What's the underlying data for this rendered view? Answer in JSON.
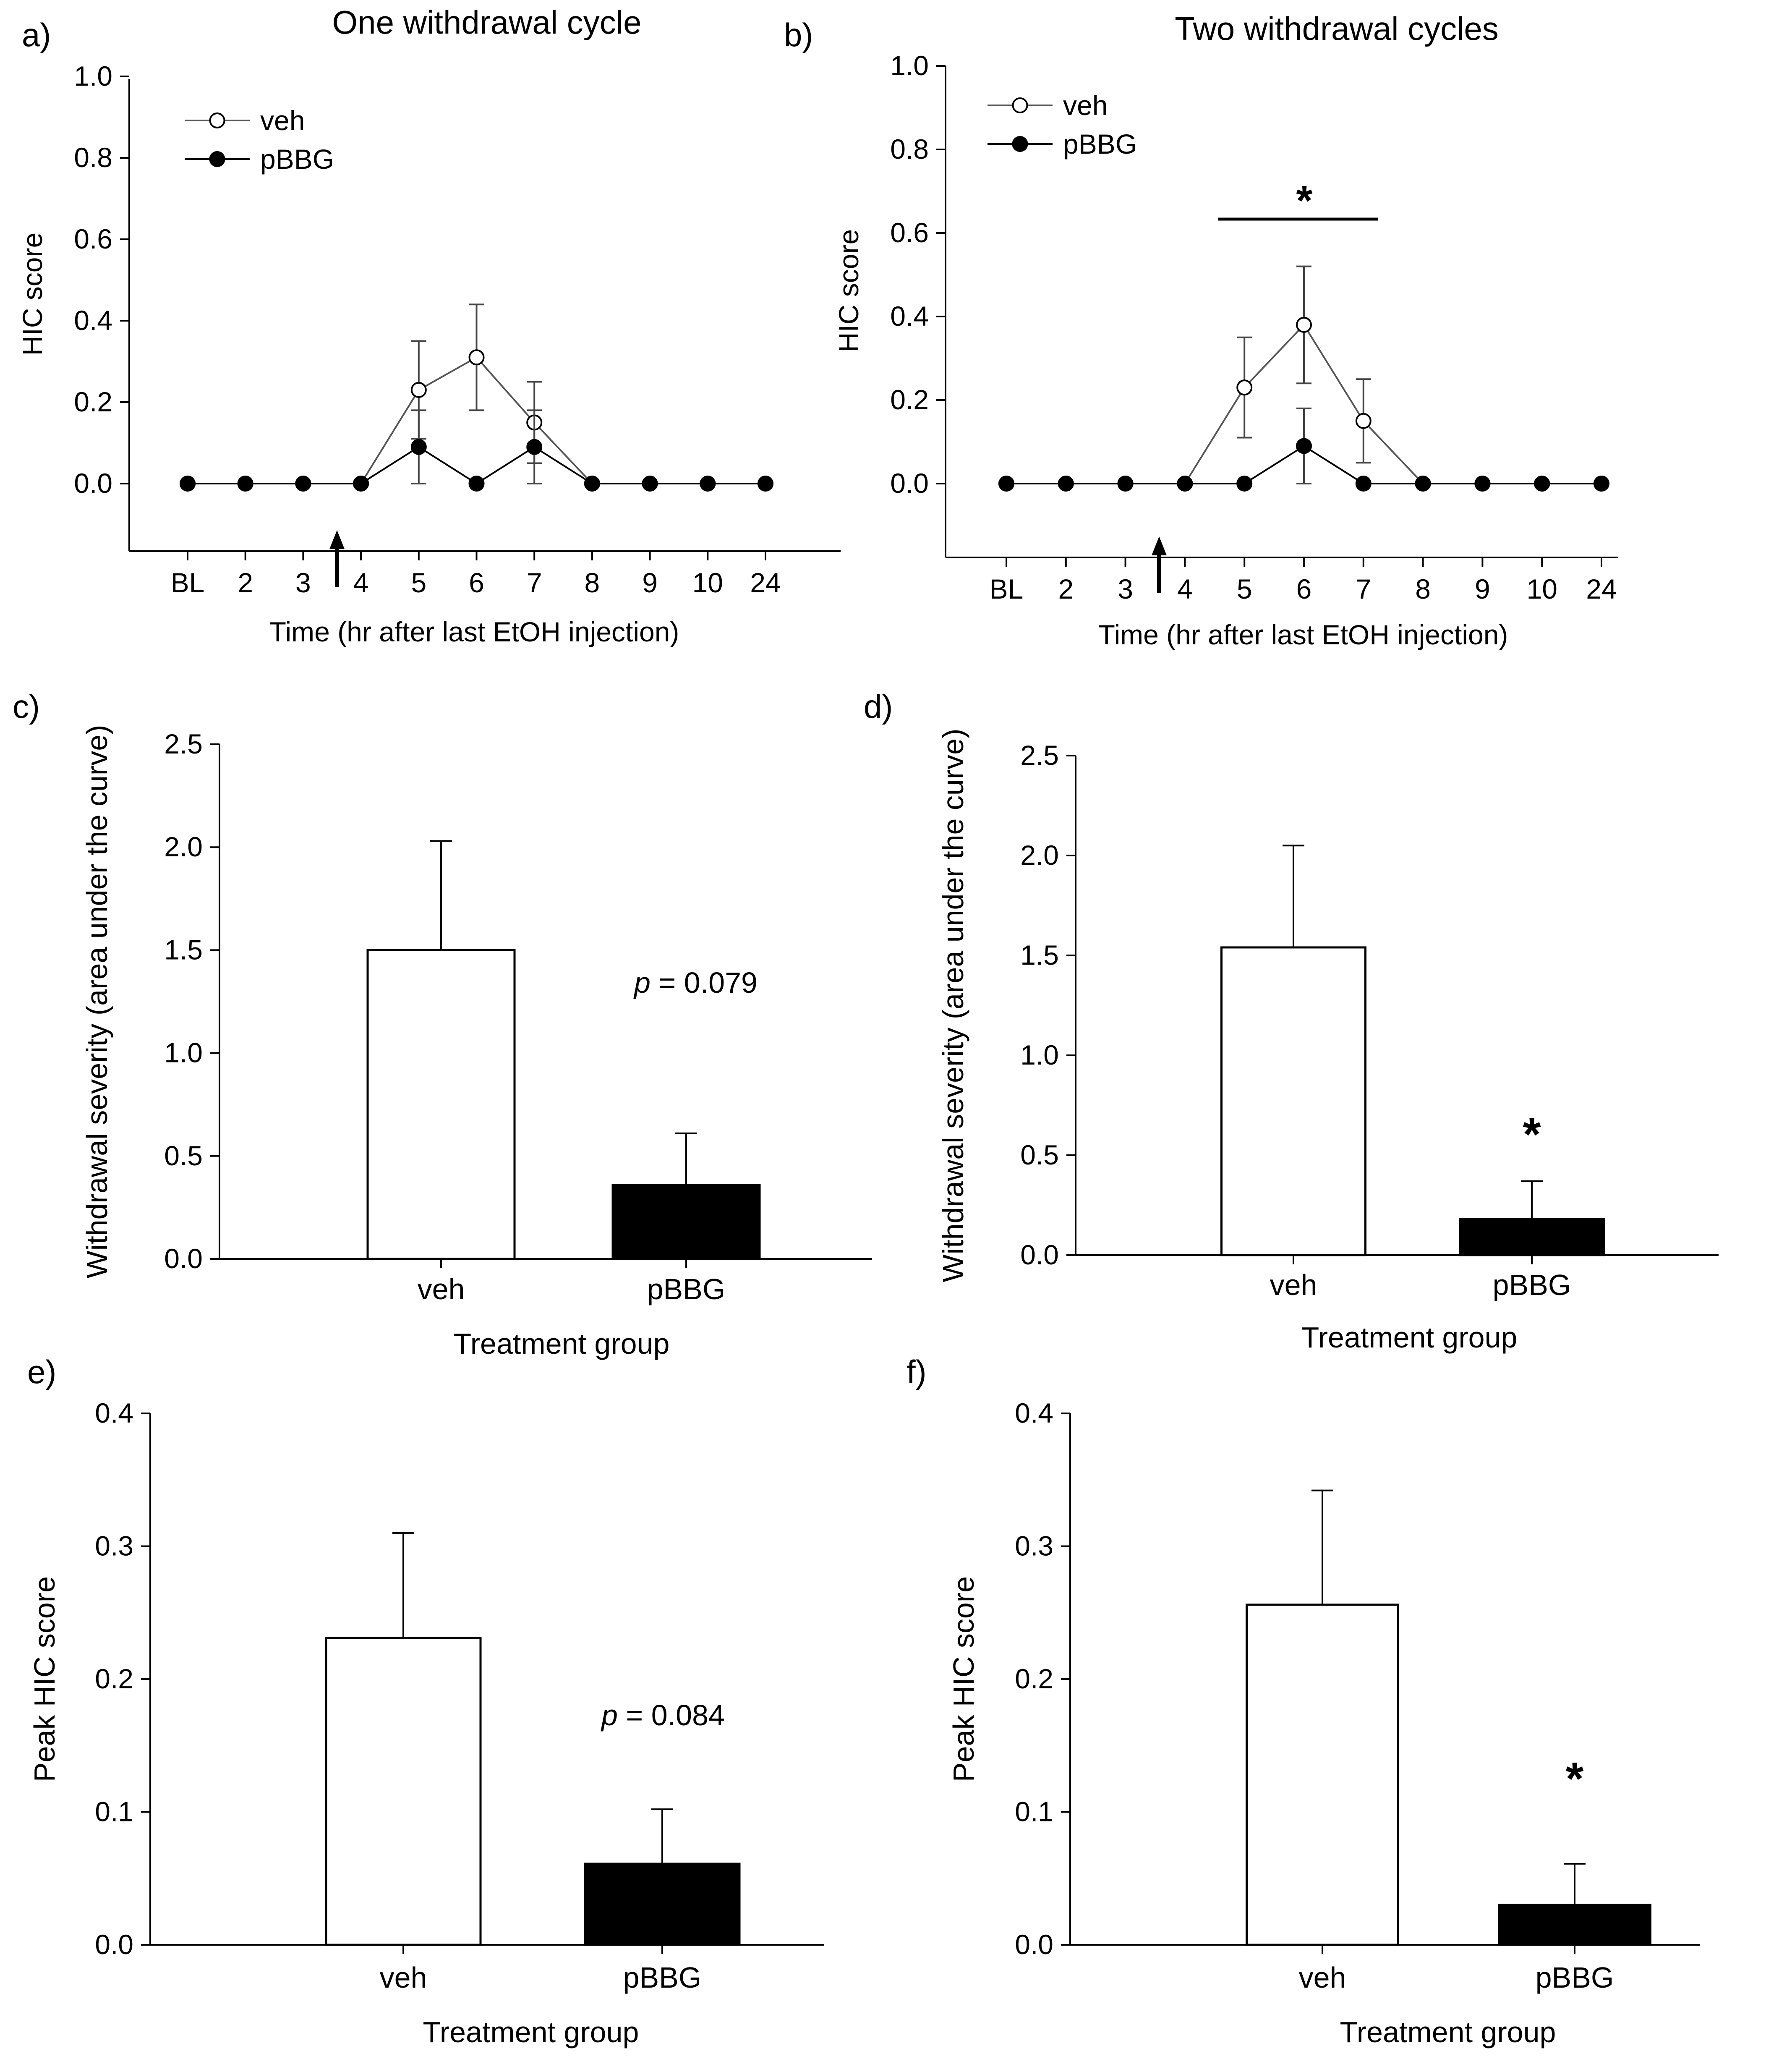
{
  "chart_data": [
    {
      "id": "a",
      "type": "line",
      "panel_label": "a)",
      "title": "One withdrawal cycle",
      "xlabel": "Time (hr after last EtOH injection)",
      "ylabel": "HIC score",
      "categories": [
        "BL",
        "2",
        "3",
        "4",
        "5",
        "6",
        "7",
        "8",
        "9",
        "10",
        "24"
      ],
      "ylim": [
        -0.2,
        1.0
      ],
      "yticks": [
        "0.0",
        "0.2",
        "0.4",
        "0.6",
        "0.8",
        "1.0"
      ],
      "series": [
        {
          "name": "veh",
          "marker": "open",
          "values": [
            0,
            0,
            0,
            0,
            0.23,
            0.31,
            0.15,
            0,
            0,
            0,
            0
          ],
          "errors": [
            0,
            0,
            0,
            0,
            0.12,
            0.13,
            0.1,
            0,
            0,
            0,
            0
          ]
        },
        {
          "name": "pBBG",
          "marker": "filled",
          "values": [
            0,
            0,
            0,
            0,
            0.09,
            0,
            0.09,
            0,
            0,
            0,
            0
          ],
          "errors": [
            0,
            0,
            0,
            0,
            0.09,
            0,
            0.09,
            0,
            0,
            0,
            0
          ]
        }
      ],
      "annotations": {
        "arrow_between": [
          "3",
          "4"
        ]
      }
    },
    {
      "id": "b",
      "type": "line",
      "panel_label": "b)",
      "title": "Two withdrawal cycles",
      "xlabel": "Time (hr after last EtOH injection)",
      "ylabel": "HIC score",
      "categories": [
        "BL",
        "2",
        "3",
        "4",
        "5",
        "6",
        "7",
        "8",
        "9",
        "10",
        "24"
      ],
      "ylim": [
        -0.2,
        1.0
      ],
      "yticks": [
        "0.0",
        "0.2",
        "0.4",
        "0.6",
        "0.8",
        "1.0"
      ],
      "series": [
        {
          "name": "veh",
          "marker": "open",
          "values": [
            0,
            0,
            0,
            0,
            0.23,
            0.38,
            0.15,
            0,
            0,
            0,
            0
          ],
          "errors": [
            0,
            0,
            0,
            0,
            0.12,
            0.14,
            0.1,
            0,
            0,
            0,
            0
          ]
        },
        {
          "name": "pBBG",
          "marker": "filled",
          "values": [
            0,
            0,
            0,
            0,
            0,
            0.09,
            0,
            0,
            0,
            0,
            0
          ],
          "errors": [
            0,
            0,
            0,
            0,
            0,
            0.09,
            0,
            0,
            0,
            0,
            0
          ]
        }
      ],
      "annotations": {
        "arrow_between": [
          "3",
          "4"
        ],
        "significance": {
          "text": "*",
          "from": "5",
          "to": "7"
        }
      }
    },
    {
      "id": "c",
      "type": "bar",
      "panel_label": "c)",
      "xlabel": "Treatment group",
      "ylabel": "Withdrawal severity (area under the curve)",
      "categories": [
        "veh",
        "pBBG"
      ],
      "values": [
        1.5,
        0.36
      ],
      "errors": [
        0.53,
        0.25
      ],
      "fills": [
        "#ffffff",
        "#000000"
      ],
      "ylim": [
        0,
        2.5
      ],
      "yticks": [
        "0.0",
        "0.5",
        "1.0",
        "1.5",
        "2.0",
        "2.5"
      ],
      "annotation": {
        "p_label": "p",
        "p_value": " = 0.079"
      }
    },
    {
      "id": "d",
      "type": "bar",
      "panel_label": "d)",
      "xlabel": "Treatment group",
      "ylabel": "Withdrawal severity (area under the curve)",
      "categories": [
        "veh",
        "pBBG"
      ],
      "values": [
        1.54,
        0.18
      ],
      "errors": [
        0.51,
        0.19
      ],
      "fills": [
        "#ffffff",
        "#000000"
      ],
      "ylim": [
        0,
        2.5
      ],
      "yticks": [
        "0.0",
        "0.5",
        "1.0",
        "1.5",
        "2.0",
        "2.5"
      ],
      "annotation": {
        "star": "*"
      }
    },
    {
      "id": "e",
      "type": "bar",
      "panel_label": "e)",
      "xlabel": "Treatment group",
      "ylabel": "Peak HIC score",
      "categories": [
        "veh",
        "pBBG"
      ],
      "values": [
        0.231,
        0.061
      ],
      "errors": [
        0.079,
        0.041
      ],
      "fills": [
        "#ffffff",
        "#000000"
      ],
      "ylim": [
        0,
        0.4
      ],
      "yticks": [
        "0.0",
        "0.1",
        "0.2",
        "0.3",
        "0.4"
      ],
      "annotation": {
        "p_label": "p",
        "p_value": " = 0.084"
      }
    },
    {
      "id": "f",
      "type": "bar",
      "panel_label": "f)",
      "xlabel": "Treatment group",
      "ylabel": "Peak HIC score",
      "categories": [
        "veh",
        "pBBG"
      ],
      "values": [
        0.256,
        0.03
      ],
      "errors": [
        0.086,
        0.031
      ],
      "fills": [
        "#ffffff",
        "#000000"
      ],
      "ylim": [
        0,
        0.4
      ],
      "yticks": [
        "0.0",
        "0.1",
        "0.2",
        "0.3",
        "0.4"
      ],
      "annotation": {
        "star": "*"
      }
    }
  ]
}
